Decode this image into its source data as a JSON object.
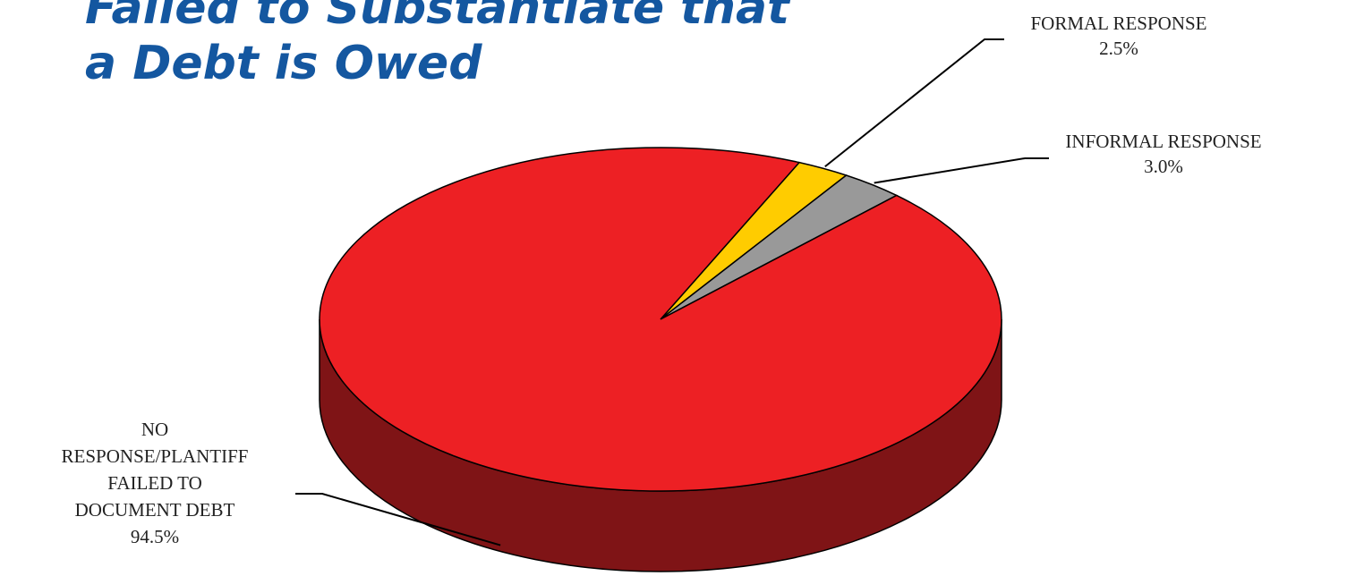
{
  "title_line1": "Failed to Substantiate that",
  "title_line2": "a Debt is Owed",
  "chart_data": {
    "type": "pie",
    "title": "Failed to Substantiate that a Debt is Owed",
    "slices": [
      {
        "label": "NO RESPONSE/PLANTIFF FAILED TO DOCUMENT DEBT",
        "label_lines": [
          "NO",
          "RESPONSE/PLANTIFF",
          "FAILED TO",
          "DOCUMENT DEBT"
        ],
        "value": 94.5,
        "value_label": "94.5%",
        "color": "#ed2024",
        "side_color": "#7f1416"
      },
      {
        "label": "FORMAL RESPONSE",
        "label_lines": [
          "FORMAL RESPONSE"
        ],
        "value": 2.5,
        "value_label": "2.5%",
        "color": "#ffcc00",
        "side_color": "#8a6e00"
      },
      {
        "label": "INFORMAL RESPONSE",
        "label_lines": [
          "INFORMAL RESPONSE"
        ],
        "value": 3.0,
        "value_label": "3.0%",
        "color": "#999999",
        "side_color": "#555555"
      }
    ],
    "legend": "none",
    "style": "3d-pie"
  }
}
